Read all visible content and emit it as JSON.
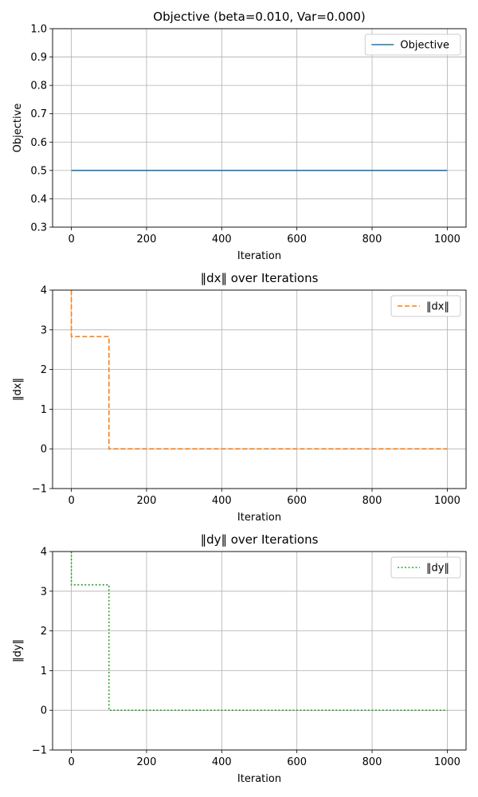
{
  "chart_data": [
    {
      "type": "line",
      "title": "Objective (beta=0.010, Var=0.000)",
      "xlabel": "Iteration",
      "ylabel": "Objective",
      "xlim": [
        -50,
        1050
      ],
      "ylim": [
        0.3,
        1.0
      ],
      "xticks": [
        "0",
        "200",
        "400",
        "600",
        "800",
        "1000"
      ],
      "yticks": [
        "0.3",
        "0.4",
        "0.5",
        "0.6",
        "0.7",
        "0.8",
        "0.9",
        "1.0"
      ],
      "grid": true,
      "legend_position": "top-right",
      "series": [
        {
          "name": "Objective",
          "color": "#1f77b4",
          "style": "solid",
          "points": [
            [
              0,
              0.5
            ],
            [
              1000,
              0.5
            ]
          ]
        }
      ]
    },
    {
      "type": "line",
      "title": "‖dx‖ over Iterations",
      "xlabel": "Iteration",
      "ylabel": "‖dx‖",
      "xlim": [
        -50,
        1050
      ],
      "ylim": [
        -1,
        4
      ],
      "xticks": [
        "0",
        "200",
        "400",
        "600",
        "800",
        "1000"
      ],
      "yticks": [
        "−1",
        "0",
        "1",
        "2",
        "3",
        "4"
      ],
      "grid": true,
      "legend_position": "top-right",
      "series": [
        {
          "name": "‖dx‖",
          "color": "#ff7f0e",
          "style": "dashed",
          "points": [
            [
              0,
              4.0
            ],
            [
              0,
              2.83
            ],
            [
              100,
              2.83
            ],
            [
              100,
              0
            ],
            [
              1000,
              0
            ]
          ]
        }
      ]
    },
    {
      "type": "line",
      "title": "‖dy‖ over Iterations",
      "xlabel": "Iteration",
      "ylabel": "‖dy‖",
      "xlim": [
        -50,
        1050
      ],
      "ylim": [
        -1,
        4
      ],
      "xticks": [
        "0",
        "200",
        "400",
        "600",
        "800",
        "1000"
      ],
      "yticks": [
        "−1",
        "0",
        "1",
        "2",
        "3",
        "4"
      ],
      "grid": true,
      "legend_position": "top-right",
      "series": [
        {
          "name": "‖dy‖",
          "color": "#2ca02c",
          "style": "dotted",
          "points": [
            [
              0,
              4.0
            ],
            [
              0,
              3.16
            ],
            [
              100,
              3.16
            ],
            [
              100,
              0
            ],
            [
              1000,
              0
            ]
          ]
        }
      ]
    }
  ]
}
